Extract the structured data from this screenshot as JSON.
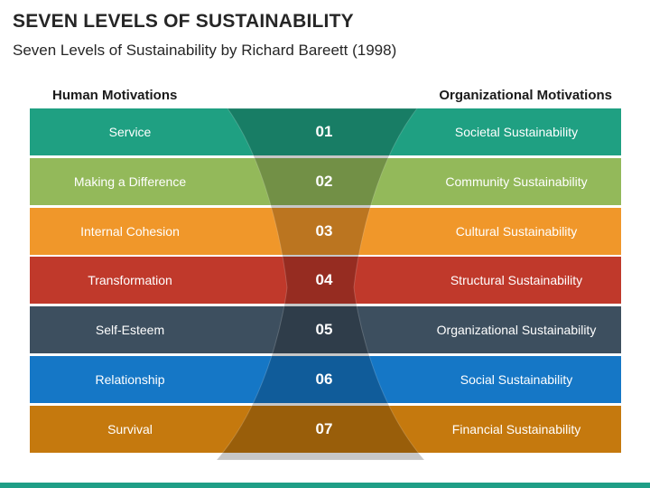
{
  "title": "SEVEN LEVELS OF SUSTAINABILITY",
  "subtitle": "Seven Levels of Sustainability by Richard Bareett (1998)",
  "headers": {
    "left": "Human Motivations",
    "right": "Organizational Motivations"
  },
  "rows": [
    {
      "num": "01",
      "left": "Service",
      "right": "Societal Sustainability",
      "color": "#1fa082"
    },
    {
      "num": "02",
      "left": "Making a Difference",
      "right": "Community Sustainability",
      "color": "#93b95a"
    },
    {
      "num": "03",
      "left": "Internal Cohesion",
      "right": "Cultural Sustainability",
      "color": "#f0972a"
    },
    {
      "num": "04",
      "left": "Transformation",
      "right": "Structural Sustainability",
      "color": "#c0392b"
    },
    {
      "num": "05",
      "left": "Self-Esteem",
      "right": "Organizational Sustainability",
      "color": "#3d4f5f"
    },
    {
      "num": "06",
      "left": "Relationship",
      "right": "Social Sustainability",
      "color": "#1577c6"
    },
    {
      "num": "07",
      "left": "Survival",
      "right": "Financial Sustainability",
      "color": "#c5790e"
    }
  ],
  "accent": "#1f9e86"
}
